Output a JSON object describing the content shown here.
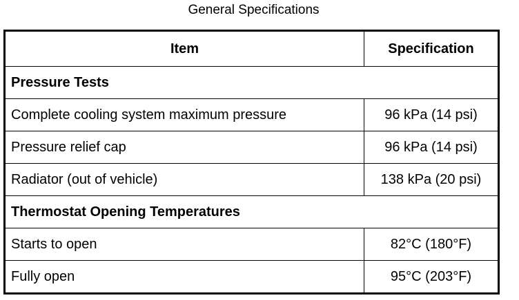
{
  "title": "General Specifications",
  "table": {
    "headers": [
      "Item",
      "Specification"
    ],
    "sections": [
      {
        "heading": "Pressure Tests",
        "rows": [
          {
            "item": "Complete cooling system maximum pressure",
            "spec": "96 kPa (14 psi)"
          },
          {
            "item": "Pressure relief cap",
            "spec": "96 kPa (14 psi)"
          },
          {
            "item": "Radiator (out of vehicle)",
            "spec": "138 kPa (20 psi)"
          }
        ]
      },
      {
        "heading": "Thermostat Opening Temperatures",
        "rows": [
          {
            "item": "Starts to open",
            "spec": "82°C (180°F)"
          },
          {
            "item": "Fully open",
            "spec": "95°C (203°F)"
          }
        ]
      }
    ]
  }
}
